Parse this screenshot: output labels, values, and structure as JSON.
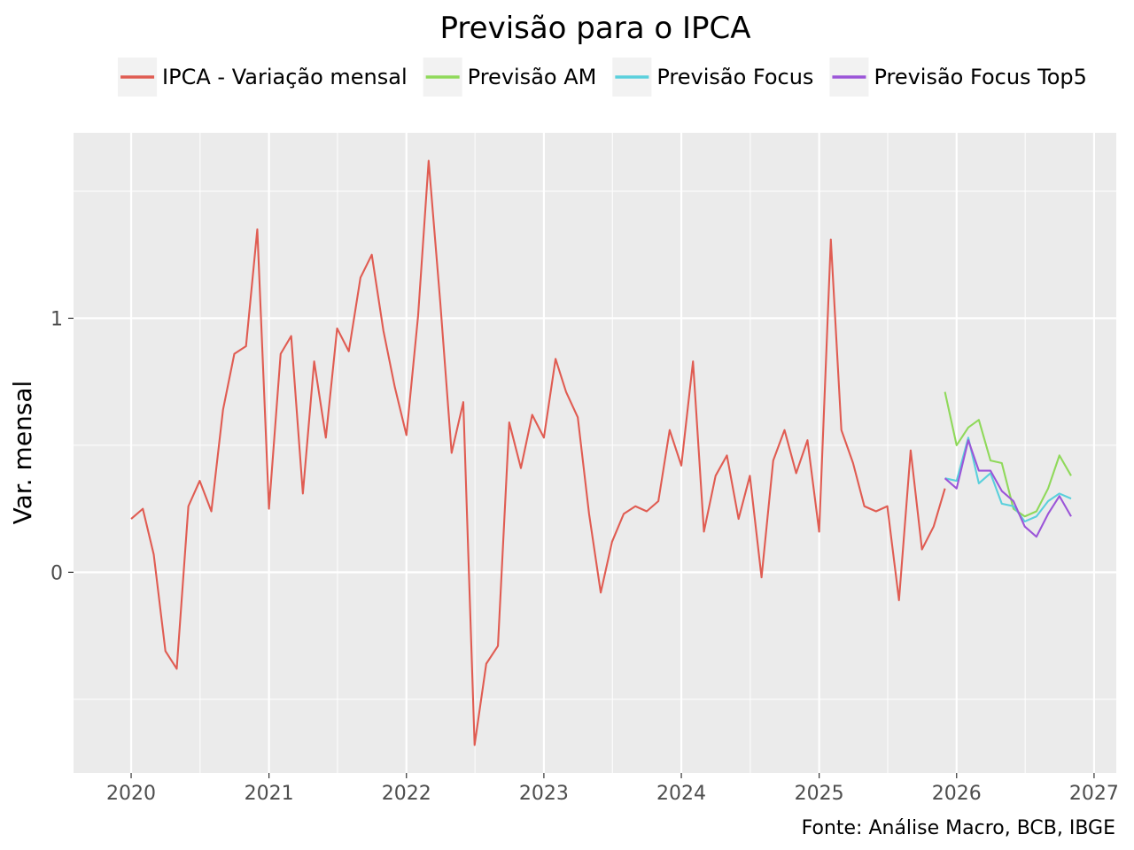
{
  "chart_data": {
    "type": "line",
    "title": "Previsão para o IPCA",
    "xlabel": "",
    "ylabel": "Var. mensal",
    "caption": "Fonte: Análise Macro, BCB, IBGE",
    "x_axis": {
      "min": "2019-08-01",
      "max": "2027-03-01",
      "ticks": [
        "2020",
        "2021",
        "2022",
        "2023",
        "2024",
        "2025",
        "2026",
        "2027"
      ]
    },
    "y_axis": {
      "min": -0.79,
      "max": 1.73,
      "ticks": [
        0,
        1
      ]
    },
    "grid": true,
    "legend_position": "top",
    "series": [
      {
        "name": "IPCA - Variação mensal",
        "color": "#e05c52",
        "x": [
          "2020-01",
          "2020-02",
          "2020-03",
          "2020-04",
          "2020-05",
          "2020-06",
          "2020-07",
          "2020-08",
          "2020-09",
          "2020-10",
          "2020-11",
          "2020-12",
          "2021-01",
          "2021-02",
          "2021-03",
          "2021-04",
          "2021-05",
          "2021-06",
          "2021-07",
          "2021-08",
          "2021-09",
          "2021-10",
          "2021-11",
          "2021-12",
          "2022-01",
          "2022-02",
          "2022-03",
          "2022-04",
          "2022-05",
          "2022-06",
          "2022-07",
          "2022-08",
          "2022-09",
          "2022-10",
          "2022-11",
          "2022-12",
          "2023-01",
          "2023-02",
          "2023-03",
          "2023-04",
          "2023-05",
          "2023-06",
          "2023-07",
          "2023-08",
          "2023-09",
          "2023-10",
          "2023-11",
          "2023-12",
          "2024-01",
          "2024-02",
          "2024-03",
          "2024-04",
          "2024-05",
          "2024-06",
          "2024-07",
          "2024-08",
          "2024-09",
          "2024-10",
          "2024-11",
          "2024-12",
          "2025-01",
          "2025-02",
          "2025-03",
          "2025-04",
          "2025-05",
          "2025-06",
          "2025-07",
          "2025-08",
          "2025-09",
          "2025-10",
          "2025-11",
          "2025-12"
        ],
        "values": [
          0.21,
          0.25,
          0.07,
          -0.31,
          -0.38,
          0.26,
          0.36,
          0.24,
          0.64,
          0.86,
          0.89,
          1.35,
          0.25,
          0.86,
          0.93,
          0.31,
          0.83,
          0.53,
          0.96,
          0.87,
          1.16,
          1.25,
          0.95,
          0.73,
          0.54,
          1.01,
          1.62,
          1.06,
          0.47,
          0.67,
          -0.68,
          -0.36,
          -0.29,
          0.59,
          0.41,
          0.62,
          0.53,
          0.84,
          0.71,
          0.61,
          0.23,
          -0.08,
          0.12,
          0.23,
          0.26,
          0.24,
          0.28,
          0.56,
          0.42,
          0.83,
          0.16,
          0.38,
          0.46,
          0.21,
          0.38,
          -0.02,
          0.44,
          0.56,
          0.39,
          0.52,
          0.16,
          1.31,
          0.56,
          0.43,
          0.26,
          0.24,
          0.26,
          -0.11,
          0.48,
          0.09,
          0.18,
          0.33
        ]
      },
      {
        "name": "Previsão AM",
        "color": "#8fd95a",
        "x": [
          "2025-12",
          "2026-01",
          "2026-02",
          "2026-03",
          "2026-04",
          "2026-05",
          "2026-06",
          "2026-07",
          "2026-08",
          "2026-09",
          "2026-10",
          "2026-11"
        ],
        "values": [
          0.71,
          0.5,
          0.57,
          0.6,
          0.44,
          0.43,
          0.25,
          0.22,
          0.24,
          0.33,
          0.46,
          0.38
        ]
      },
      {
        "name": "Previsão Focus",
        "color": "#5ad0dc",
        "x": [
          "2025-12",
          "2026-01",
          "2026-02",
          "2026-03",
          "2026-04",
          "2026-05",
          "2026-06",
          "2026-07",
          "2026-08",
          "2026-09",
          "2026-10",
          "2026-11"
        ],
        "values": [
          0.37,
          0.36,
          0.53,
          0.35,
          0.39,
          0.27,
          0.26,
          0.2,
          0.22,
          0.28,
          0.31,
          0.29
        ]
      },
      {
        "name": "Previsão Focus Top5",
        "color": "#9b55d8",
        "x": [
          "2025-12",
          "2026-01",
          "2026-02",
          "2026-03",
          "2026-04",
          "2026-05",
          "2026-06",
          "2026-07",
          "2026-08",
          "2026-09",
          "2026-10",
          "2026-11"
        ],
        "values": [
          0.37,
          0.33,
          0.52,
          0.4,
          0.4,
          0.32,
          0.28,
          0.18,
          0.14,
          0.23,
          0.3,
          0.22
        ]
      }
    ]
  }
}
